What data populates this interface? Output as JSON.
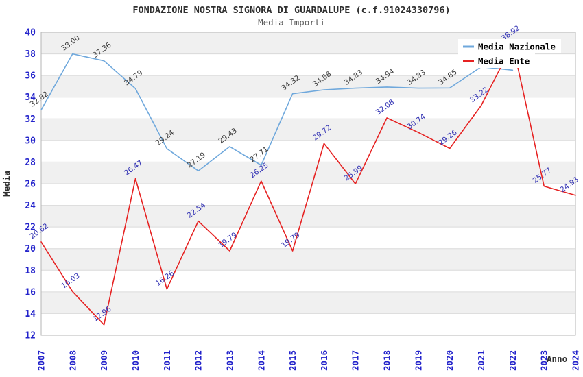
{
  "chart_data": {
    "type": "line",
    "title": "FONDAZIONE NOSTRA SIGNORA DI GUARDALUPE (c.f.91024330796)",
    "subtitle": "Media Importi",
    "xlabel": "Anno",
    "ylabel": "Media",
    "x": [
      2007,
      2008,
      2009,
      2010,
      2011,
      2012,
      2013,
      2014,
      2015,
      2016,
      2017,
      2018,
      2019,
      2020,
      2021,
      2022,
      2023,
      2024
    ],
    "ylim": [
      12,
      40
    ],
    "ytick_step": 2,
    "grid": "horizontal-gridlines-with-alternating-bands",
    "legend_position": "top-right",
    "series": [
      {
        "name": "Media Nazionale",
        "color": "#6fa8dc",
        "label_color": "#3c3c3c",
        "values": [
          32.82,
          38.0,
          37.36,
          34.79,
          29.24,
          27.19,
          29.43,
          27.71,
          34.32,
          34.68,
          34.83,
          34.94,
          34.83,
          34.85,
          36.8,
          36.5,
          null,
          null
        ],
        "point_labels": [
          "32.82",
          "38.00",
          "37.36",
          "34.79",
          "29.24",
          "27.19",
          "29.43",
          "27.71",
          "34.32",
          "34.68",
          "34.83",
          "34.94",
          "34.83",
          "34.85",
          null,
          null,
          null,
          null
        ]
      },
      {
        "name": "Media Ente",
        "color": "#e62222",
        "label_color": "#3333b4",
        "values": [
          20.62,
          16.03,
          12.96,
          26.47,
          16.26,
          22.54,
          19.79,
          26.25,
          19.79,
          29.72,
          25.99,
          32.08,
          30.74,
          29.26,
          33.22,
          38.92,
          25.77,
          24.93
        ],
        "point_labels": [
          "20.62",
          "16.03",
          "12.96",
          "26.47",
          "16.26",
          "22.54",
          "19.79",
          "26.25",
          "19.79",
          "29.72",
          "25.99",
          "32.08",
          "30.74",
          "29.26",
          "33.22",
          "38.92",
          "25.77",
          "24.93"
        ]
      }
    ],
    "colors": {
      "tick": "#2323cb",
      "grid_band": "#f0f0f0",
      "gridline": "#dadada",
      "plot_border": "#b6b6b6",
      "legend_background": "#ffffff"
    }
  }
}
